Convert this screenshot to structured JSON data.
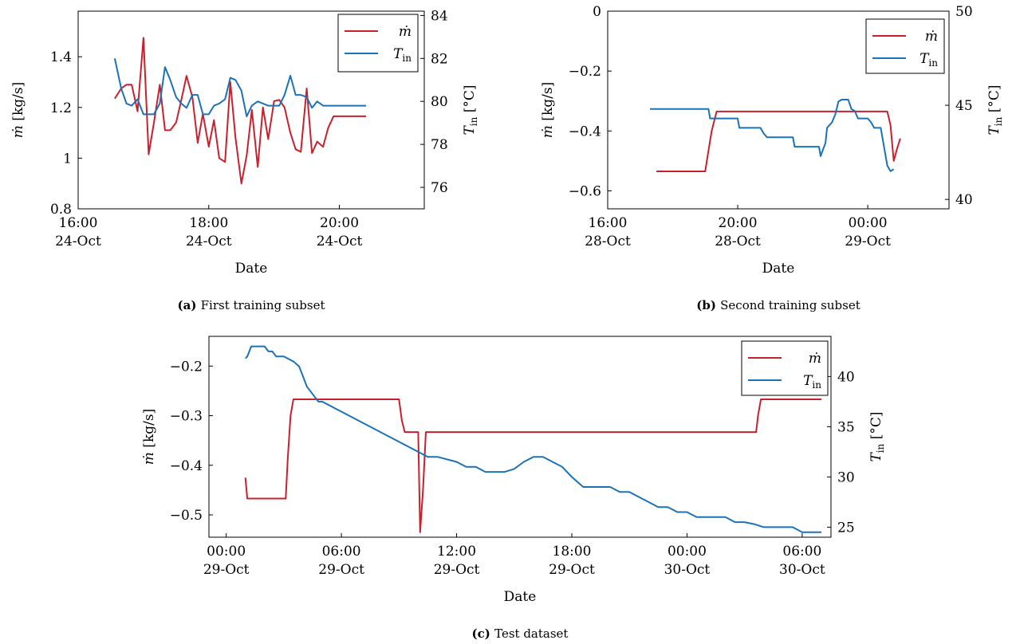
{
  "colors": {
    "m_dot": "#c8202c",
    "T_in": "#1a72b8"
  },
  "chart_data": [
    {
      "type": "line",
      "caption_tag": "(a)",
      "caption": "First training subset",
      "xlabel": "Date",
      "ylabel_left": "ṁ [kg/s]",
      "ylabel_right": "T_in [°C]",
      "x_unit": "hours since 24-Oct 00:00",
      "xlim": [
        16,
        21.3
      ],
      "ylim_left": [
        0.8,
        1.58
      ],
      "ylim_right": [
        75,
        84.2
      ],
      "yticks_left": [
        0.8,
        1,
        1.2,
        1.4
      ],
      "yticks_left_labels": [
        "0.8",
        "1",
        "1.2",
        "1.4"
      ],
      "yticks_right": [
        76,
        78,
        80,
        82,
        84
      ],
      "yticks_right_labels": [
        "76",
        "78",
        "80",
        "82",
        "84"
      ],
      "xticks": [
        16,
        18,
        20
      ],
      "xtick_labels": [
        [
          "16:00",
          "24-Oct"
        ],
        [
          "18:00",
          "24-Oct"
        ],
        [
          "20:00",
          "24-Oct"
        ]
      ],
      "legend": [
        "ṁ",
        "T_in"
      ],
      "legend_position": "top-right",
      "series": [
        {
          "name": "ṁ",
          "axis": "left",
          "color": "#c8202c",
          "x": [
            16.56,
            16.66,
            16.74,
            16.82,
            16.91,
            17.0,
            17.08,
            17.16,
            17.25,
            17.33,
            17.41,
            17.5,
            17.58,
            17.66,
            17.75,
            17.83,
            17.91,
            18.0,
            18.08,
            18.16,
            18.25,
            18.33,
            18.41,
            18.5,
            18.58,
            18.66,
            18.75,
            18.83,
            18.91,
            19.0,
            19.08,
            19.16,
            19.25,
            19.33,
            19.41,
            19.5,
            19.58,
            19.66,
            19.75,
            19.83,
            19.91,
            20.0,
            20.08,
            20.16,
            20.25,
            20.33,
            20.41
          ],
          "values": [
            1.235,
            1.275,
            1.29,
            1.29,
            1.185,
            1.475,
            1.015,
            1.14,
            1.29,
            1.11,
            1.11,
            1.14,
            1.23,
            1.325,
            1.24,
            1.06,
            1.175,
            1.045,
            1.15,
            1.0,
            0.985,
            1.3,
            1.08,
            0.9,
            1.01,
            1.19,
            0.965,
            1.2,
            1.075,
            1.225,
            1.23,
            1.2,
            1.1,
            1.035,
            1.025,
            1.275,
            1.02,
            1.065,
            1.045,
            1.12,
            1.165,
            1.165,
            1.165,
            1.165,
            1.165,
            1.165,
            1.165
          ]
        },
        {
          "name": "T_in",
          "axis": "right",
          "color": "#1a72b8",
          "x": [
            16.56,
            16.66,
            16.74,
            16.82,
            16.91,
            17.0,
            17.08,
            17.16,
            17.25,
            17.33,
            17.41,
            17.5,
            17.58,
            17.66,
            17.75,
            17.83,
            17.91,
            18.0,
            18.08,
            18.16,
            18.25,
            18.33,
            18.41,
            18.5,
            18.58,
            18.66,
            18.75,
            18.83,
            18.91,
            19.0,
            19.08,
            19.16,
            19.25,
            19.33,
            19.41,
            19.5,
            19.58,
            19.66,
            19.75,
            19.83,
            19.91,
            20.0,
            20.08,
            20.16,
            20.25,
            20.33,
            20.41
          ],
          "values": [
            82.0,
            80.6,
            79.9,
            79.8,
            80.1,
            79.4,
            79.4,
            79.4,
            79.9,
            81.6,
            81.0,
            80.2,
            79.9,
            79.7,
            80.3,
            80.3,
            79.4,
            79.4,
            79.8,
            79.9,
            80.1,
            81.1,
            81.0,
            80.5,
            79.3,
            79.8,
            80.0,
            79.9,
            79.8,
            79.8,
            79.8,
            80.3,
            81.2,
            80.3,
            80.3,
            80.2,
            79.7,
            80.0,
            79.8,
            79.8,
            79.8,
            79.8,
            79.8,
            79.8,
            79.8,
            79.8,
            79.8
          ]
        }
      ]
    },
    {
      "type": "line",
      "caption_tag": "(b)",
      "caption": "Second training subset",
      "xlabel": "Date",
      "ylabel_left": "ṁ [kg/s]",
      "ylabel_right": "T_in [°C]",
      "x_unit": "hours since 28-Oct 00:00",
      "xlim": [
        16,
        26.5
      ],
      "ylim_left": [
        -0.66,
        0
      ],
      "ylim_right": [
        39.5,
        50
      ],
      "yticks_left": [
        -0.6,
        -0.4,
        -0.2,
        0
      ],
      "yticks_left_labels": [
        "−0.6",
        "−0.4",
        "−0.2",
        "0"
      ],
      "yticks_right": [
        40,
        45,
        50
      ],
      "yticks_right_labels": [
        "40",
        "45",
        "50"
      ],
      "xticks": [
        16,
        20,
        24
      ],
      "xtick_labels": [
        [
          "16:00",
          "28-Oct"
        ],
        [
          "20:00",
          "28-Oct"
        ],
        [
          "00:00",
          "29-Oct"
        ]
      ],
      "legend": [
        "ṁ",
        "T_in"
      ],
      "legend_position": "top-right",
      "series": [
        {
          "name": "ṁ",
          "axis": "left",
          "color": "#c8202c",
          "x": [
            17.5,
            18.0,
            18.5,
            19.0,
            19.05,
            19.2,
            19.35,
            19.6,
            20.0,
            21.0,
            22.0,
            23.0,
            24.0,
            24.6,
            24.7,
            24.8,
            24.9,
            25.0
          ],
          "values": [
            -0.535,
            -0.535,
            -0.535,
            -0.535,
            -0.5,
            -0.4,
            -0.335,
            -0.335,
            -0.335,
            -0.335,
            -0.335,
            -0.335,
            -0.335,
            -0.335,
            -0.38,
            -0.5,
            -0.46,
            -0.425
          ]
        },
        {
          "name": "T_in",
          "axis": "right",
          "color": "#1a72b8",
          "x": [
            17.3,
            18.0,
            18.6,
            19.1,
            19.15,
            19.6,
            20.0,
            20.05,
            20.7,
            20.8,
            20.9,
            21.7,
            21.75,
            22.5,
            22.55,
            22.7,
            22.75,
            22.9,
            23.0,
            23.1,
            23.2,
            23.3,
            23.4,
            23.5,
            23.6,
            23.7,
            23.8,
            24.0,
            24.1,
            24.2,
            24.3,
            24.4,
            24.5,
            24.6,
            24.7,
            24.8
          ],
          "values": [
            44.8,
            44.8,
            44.8,
            44.8,
            44.3,
            44.3,
            44.3,
            43.8,
            43.8,
            43.5,
            43.3,
            43.3,
            42.8,
            42.8,
            42.3,
            43.0,
            43.8,
            44.1,
            44.5,
            45.2,
            45.3,
            45.3,
            45.3,
            44.8,
            44.7,
            44.3,
            44.3,
            44.3,
            44.1,
            43.8,
            43.8,
            43.8,
            42.8,
            41.8,
            41.5,
            41.6
          ]
        }
      ]
    },
    {
      "type": "line",
      "caption_tag": "(c)",
      "caption": "Test dataset",
      "xlabel": "Date",
      "ylabel_left": "ṁ [kg/s]",
      "ylabel_right": "T_in [°C]",
      "x_unit": "hours since 29-Oct 00:00",
      "xlim": [
        -0.9,
        31.5
      ],
      "ylim_left": [
        -0.545,
        -0.14
      ],
      "ylim_right": [
        24,
        44
      ],
      "yticks_left": [
        -0.5,
        -0.4,
        -0.3,
        -0.2
      ],
      "yticks_left_labels": [
        "−0.5",
        "−0.4",
        "−0.3",
        "−0.2"
      ],
      "yticks_right": [
        25,
        30,
        35,
        40
      ],
      "yticks_right_labels": [
        "25",
        "30",
        "35",
        "40"
      ],
      "xticks": [
        0,
        6,
        12,
        18,
        24,
        30
      ],
      "xtick_labels": [
        [
          "00:00",
          "29-Oct"
        ],
        [
          "06:00",
          "29-Oct"
        ],
        [
          "12:00",
          "29-Oct"
        ],
        [
          "18:00",
          "29-Oct"
        ],
        [
          "00:00",
          "30-Oct"
        ],
        [
          "06:00",
          "30-Oct"
        ]
      ],
      "legend": [
        "ṁ",
        "T_in"
      ],
      "legend_position": "top-right",
      "series": [
        {
          "name": "ṁ",
          "axis": "left",
          "color": "#c8202c",
          "x": [
            1.0,
            1.1,
            2.5,
            3.1,
            3.2,
            3.35,
            3.5,
            6.0,
            9.0,
            9.15,
            9.3,
            10.0,
            10.1,
            10.25,
            10.4,
            12.0,
            18.0,
            24.0,
            27.0,
            27.6,
            27.7,
            27.85,
            28.0,
            30.0,
            31.0
          ],
          "values": [
            -0.425,
            -0.467,
            -0.467,
            -0.467,
            -0.39,
            -0.3,
            -0.267,
            -0.267,
            -0.267,
            -0.31,
            -0.333,
            -0.333,
            -0.535,
            -0.45,
            -0.333,
            -0.333,
            -0.333,
            -0.333,
            -0.333,
            -0.333,
            -0.3,
            -0.267,
            -0.267,
            -0.267,
            -0.267
          ]
        },
        {
          "name": "T_in",
          "axis": "right",
          "color": "#1a72b8",
          "x": [
            1.0,
            1.1,
            1.2,
            1.3,
            1.5,
            2.0,
            2.2,
            2.4,
            2.6,
            3.0,
            3.5,
            3.8,
            4.0,
            4.2,
            4.4,
            4.6,
            4.8,
            5.0,
            5.5,
            6.0,
            6.5,
            7.0,
            7.5,
            8.0,
            8.5,
            9.0,
            9.5,
            10.0,
            10.5,
            11.0,
            12.0,
            12.5,
            13.0,
            13.5,
            14.0,
            14.5,
            15.0,
            15.5,
            16.0,
            16.5,
            17.0,
            17.5,
            18.0,
            18.3,
            18.6,
            19.0,
            19.5,
            20.0,
            20.5,
            21.0,
            21.5,
            22.0,
            22.5,
            23.0,
            23.5,
            24.0,
            24.5,
            25.0,
            25.5,
            26.0,
            26.5,
            27.0,
            27.5,
            28.0,
            28.5,
            29.0,
            29.5,
            30.0,
            30.5,
            31.0
          ],
          "values": [
            41.8,
            42.0,
            42.5,
            43.0,
            43.0,
            43.0,
            42.5,
            42.5,
            42.0,
            42.0,
            41.5,
            41.0,
            40.0,
            39.0,
            38.5,
            38.0,
            37.5,
            37.5,
            37.0,
            36.5,
            36.0,
            35.5,
            35.0,
            34.5,
            34.0,
            33.5,
            33.0,
            32.5,
            32.0,
            32.0,
            31.5,
            31.0,
            31.0,
            30.5,
            30.5,
            30.5,
            30.8,
            31.5,
            32.0,
            32.0,
            31.5,
            31.0,
            30.0,
            29.5,
            29.0,
            29.0,
            29.0,
            29.0,
            28.5,
            28.5,
            28.0,
            27.5,
            27.0,
            27.0,
            26.5,
            26.5,
            26.0,
            26.0,
            26.0,
            26.0,
            25.5,
            25.5,
            25.3,
            25.0,
            25.0,
            25.0,
            25.0,
            24.5,
            24.5,
            24.5
          ]
        }
      ]
    }
  ]
}
